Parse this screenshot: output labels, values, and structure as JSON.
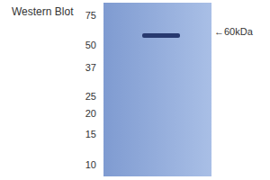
{
  "chart_data": {
    "type": "western_blot",
    "title": "Western Blot",
    "log": "y",
    "ylim": [
      8.5,
      89
    ],
    "yticks": [
      75,
      50,
      37,
      25,
      20,
      15,
      10
    ],
    "bands": [
      {
        "y": 57
      }
    ],
    "annotations": [
      {
        "text": "←60kDa",
        "y": 60
      }
    ]
  }
}
